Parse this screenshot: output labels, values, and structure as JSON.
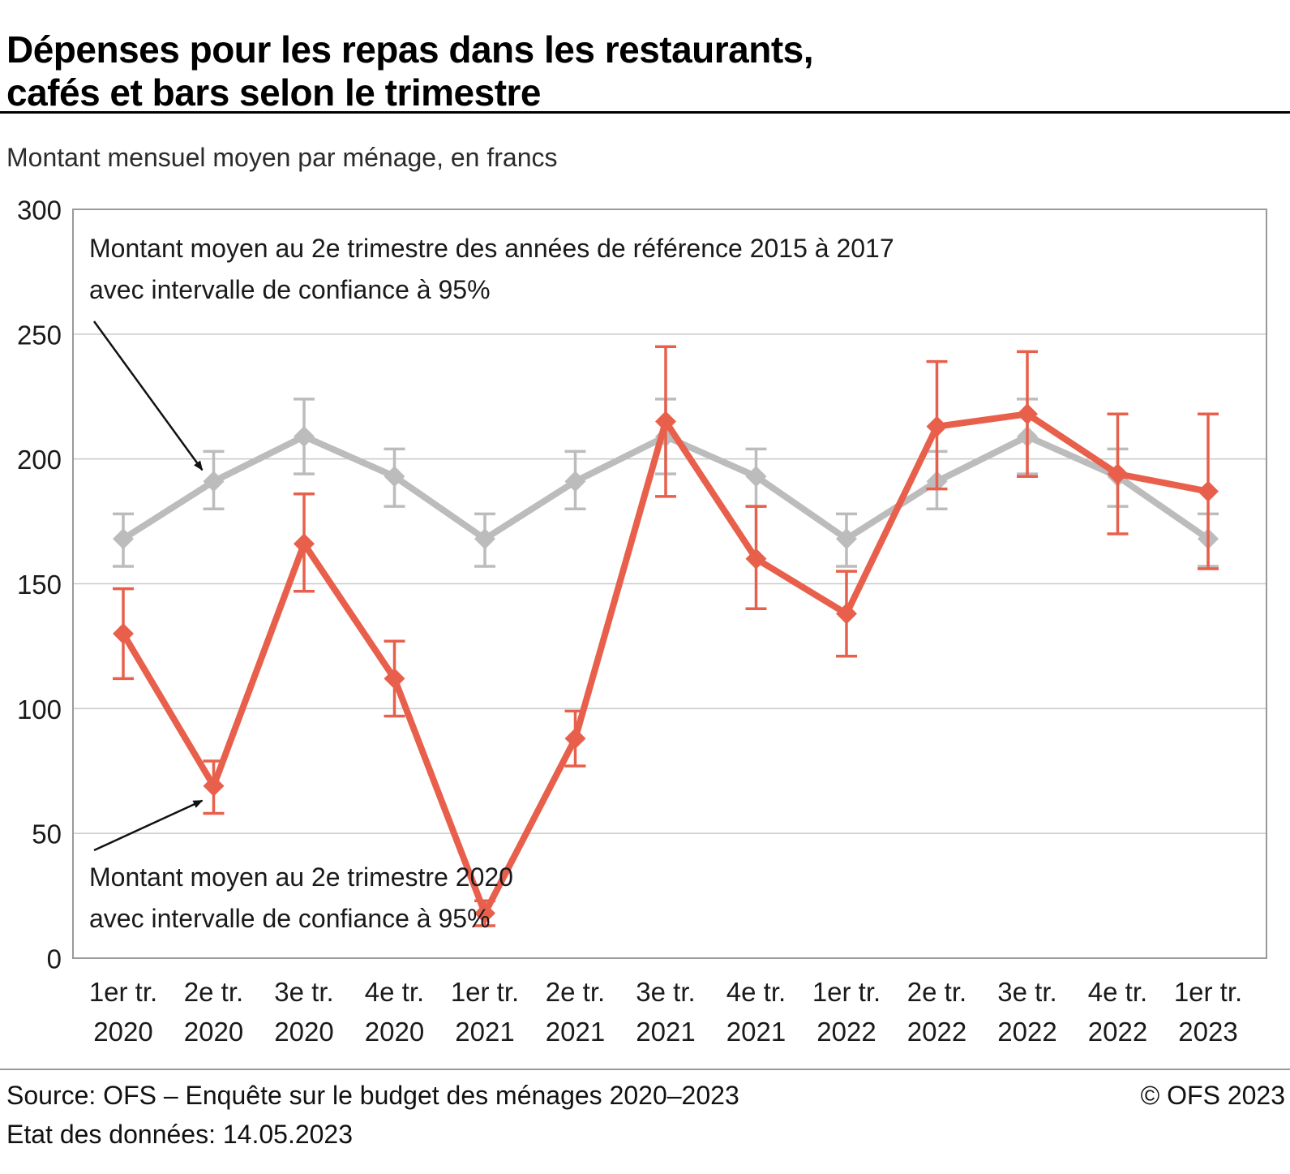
{
  "title": {
    "line1": "Dépenses pour les repas dans les restaurants,",
    "line2": "cafés et bars selon le trimestre"
  },
  "subtitle": "Montant mensuel moyen par ménage, en francs",
  "footer": {
    "source": "Source: OFS – Enquête sur le budget des ménages 2020–2023",
    "copyright": "© OFS 2023",
    "status": "Etat des données: 14.05.2023"
  },
  "colors": {
    "reference": "#bcbcbc",
    "current": "#e8604c",
    "grid": "#c9c9c9",
    "frame": "#9a9a9a",
    "annotation_arrow": "#111111"
  },
  "annotations": [
    {
      "line1": "Montant moyen au 2e trimestre des années de référence 2015 à 2017",
      "line2": "avec intervalle de confiance à 95%"
    },
    {
      "line1": "Montant moyen au 2e trimestre 2020",
      "line2": "avec intervalle de confiance à 95%"
    }
  ],
  "chart_data": {
    "type": "line",
    "title": "Dépenses pour les repas dans les restaurants, cafés et bars selon le trimestre",
    "ylabel": "Montant mensuel moyen par ménage, en francs",
    "xlabel": "",
    "ylim": [
      0,
      300
    ],
    "yticks": [
      0,
      50,
      100,
      150,
      200,
      250,
      300
    ],
    "grid": true,
    "legend_position": "annotations-in-plot",
    "categories": [
      "1er tr. 2020",
      "2e tr. 2020",
      "3e tr. 2020",
      "4e tr. 2020",
      "1er tr. 2021",
      "2e tr. 2021",
      "3e tr. 2021",
      "4e tr. 2021",
      "1er tr. 2022",
      "2e tr. 2022",
      "3e tr. 2022",
      "4e tr. 2022",
      "1er tr. 2023"
    ],
    "category_labels": [
      [
        "1er tr.",
        "2020"
      ],
      [
        "2e tr.",
        "2020"
      ],
      [
        "3e tr.",
        "2020"
      ],
      [
        "4e tr.",
        "2020"
      ],
      [
        "1er tr.",
        "2021"
      ],
      [
        "2e tr.",
        "2021"
      ],
      [
        "3e tr.",
        "2021"
      ],
      [
        "4e tr.",
        "2021"
      ],
      [
        "1er tr.",
        "2022"
      ],
      [
        "2e tr.",
        "2022"
      ],
      [
        "3e tr.",
        "2022"
      ],
      [
        "4e tr.",
        "2022"
      ],
      [
        "1er tr.",
        "2023"
      ]
    ],
    "series": [
      {
        "name": "Montant moyen au 2e trimestre des années de référence 2015 à 2017 avec intervalle de confiance à 95%",
        "key": "reference",
        "color_key": "reference",
        "values": [
          168,
          191,
          209,
          193,
          168,
          191,
          209,
          193,
          168,
          191,
          209,
          193,
          168
        ],
        "ci_low": [
          157,
          180,
          194,
          181,
          157,
          180,
          194,
          181,
          157,
          180,
          194,
          181,
          157
        ],
        "ci_high": [
          178,
          203,
          224,
          204,
          178,
          203,
          224,
          204,
          178,
          203,
          224,
          204,
          178
        ]
      },
      {
        "name": "Montant moyen au 2e trimestre 2020 avec intervalle de confiance à 95%",
        "key": "current",
        "color_key": "current",
        "values": [
          130,
          69,
          166,
          112,
          18,
          88,
          215,
          160,
          138,
          213,
          218,
          194,
          187
        ],
        "ci_low": [
          112,
          58,
          147,
          97,
          13,
          77,
          185,
          140,
          121,
          188,
          193,
          170,
          156
        ],
        "ci_high": [
          148,
          79,
          186,
          127,
          23,
          99,
          245,
          181,
          155,
          239,
          243,
          218,
          218
        ]
      }
    ]
  }
}
